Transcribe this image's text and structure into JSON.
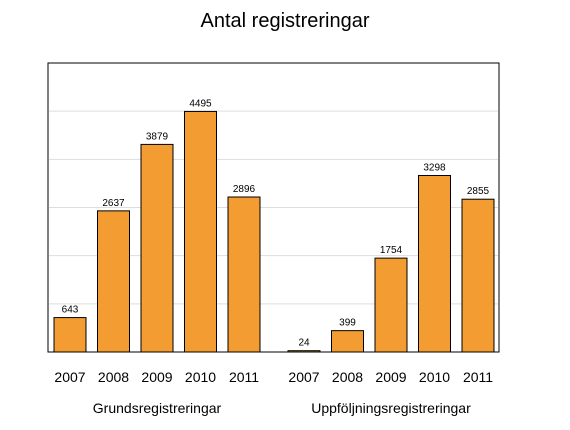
{
  "chart_data": {
    "type": "bar",
    "title": "Antal registreringar",
    "xlabel": "",
    "ylabel": "",
    "ylim": [
      0,
      5400
    ],
    "grid": true,
    "bar_color": "#f39c32",
    "groups": [
      {
        "label": "Grundsregistreringar",
        "categories": [
          "2007",
          "2008",
          "2009",
          "2010",
          "2011"
        ],
        "values": [
          643,
          2637,
          3879,
          4495,
          2896
        ]
      },
      {
        "label": "Uppföljningsregistreringar",
        "categories": [
          "2007",
          "2008",
          "2009",
          "2010",
          "2011"
        ],
        "values": [
          24,
          399,
          1754,
          3298,
          2855
        ]
      }
    ]
  }
}
